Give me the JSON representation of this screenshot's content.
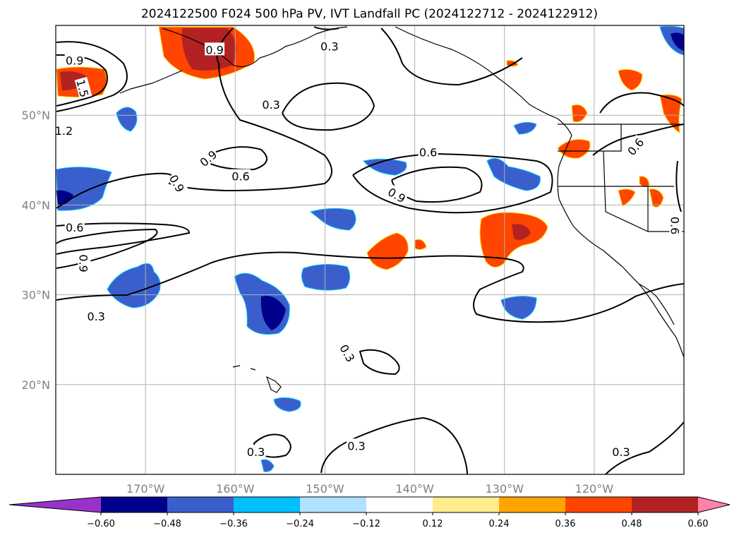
{
  "title": "2024122500 F024 500 hPa PV, IVT Landfall PC (2024122712 - 2024122912)",
  "axes": {
    "lat_ticks": [
      {
        "value": 50,
        "label": "50°N"
      },
      {
        "value": 40,
        "label": "40°N"
      },
      {
        "value": 30,
        "label": "30°N"
      },
      {
        "value": 20,
        "label": "20°N"
      }
    ],
    "lon_ticks": [
      {
        "value": -170,
        "label": "170°W"
      },
      {
        "value": -160,
        "label": "160°W"
      },
      {
        "value": -150,
        "label": "150°W"
      },
      {
        "value": -140,
        "label": "140°W"
      },
      {
        "value": -130,
        "label": "130°W"
      },
      {
        "value": -120,
        "label": "120°W"
      }
    ],
    "lon_range": [
      -180,
      -110
    ],
    "lat_range": [
      10,
      60
    ],
    "grid": true
  },
  "colorbar": {
    "bounds": [
      "−0.60",
      "−0.48",
      "−0.36",
      "−0.24",
      "−0.12",
      "0.12",
      "0.24",
      "0.36",
      "0.48",
      "0.60"
    ],
    "colors": [
      "#9932cc",
      "#00008b",
      "#3a5fcd",
      "#00bfff",
      "#b0e2ff",
      "#ffffff",
      "#ffec8b",
      "#ffa500",
      "#ff4500",
      "#b22222",
      "#ff82ab"
    ],
    "extend": "both"
  },
  "contour_labels": [
    {
      "text": "0.9",
      "lon": -177.9,
      "lat": 56.1,
      "rot": 0
    },
    {
      "text": "0.9",
      "lon": -162.3,
      "lat": 57.3,
      "rot": 0
    },
    {
      "text": "0.3",
      "lon": -149.5,
      "lat": 57.7,
      "rot": 0
    },
    {
      "text": "1.5",
      "lon": -177.0,
      "lat": 53.0,
      "rot": 75
    },
    {
      "text": "1.2",
      "lon": -179.1,
      "lat": 48.3,
      "rot": 0
    },
    {
      "text": "0.3",
      "lon": -156.0,
      "lat": 51.2,
      "rot": 0
    },
    {
      "text": "0.9",
      "lon": -163.0,
      "lat": 45.2,
      "rot": -40
    },
    {
      "text": "0.9",
      "lon": -166.5,
      "lat": 42.4,
      "rot": 60
    },
    {
      "text": "0.6",
      "lon": -159.4,
      "lat": 43.2,
      "rot": 0
    },
    {
      "text": "0.6",
      "lon": -138.5,
      "lat": 45.9,
      "rot": 0
    },
    {
      "text": "0.9",
      "lon": -142.0,
      "lat": 41.1,
      "rot": 30
    },
    {
      "text": "0.6",
      "lon": -115.4,
      "lat": 46.5,
      "rot": -50
    },
    {
      "text": "0.6",
      "lon": -111.0,
      "lat": 37.7,
      "rot": 90
    },
    {
      "text": "0.6",
      "lon": -177.9,
      "lat": 37.5,
      "rot": 0
    },
    {
      "text": "0.9",
      "lon": -176.9,
      "lat": 33.5,
      "rot": 90
    },
    {
      "text": "0.3",
      "lon": -175.5,
      "lat": 27.6,
      "rot": 0
    },
    {
      "text": "0.3",
      "lon": -147.5,
      "lat": 23.5,
      "rot": 60
    },
    {
      "text": "0.3",
      "lon": -157.7,
      "lat": 12.5,
      "rot": 0
    },
    {
      "text": "0.3",
      "lon": -146.5,
      "lat": 13.2,
      "rot": 0
    },
    {
      "text": "0.3",
      "lon": -117.0,
      "lat": 12.5,
      "rot": 0
    }
  ]
}
